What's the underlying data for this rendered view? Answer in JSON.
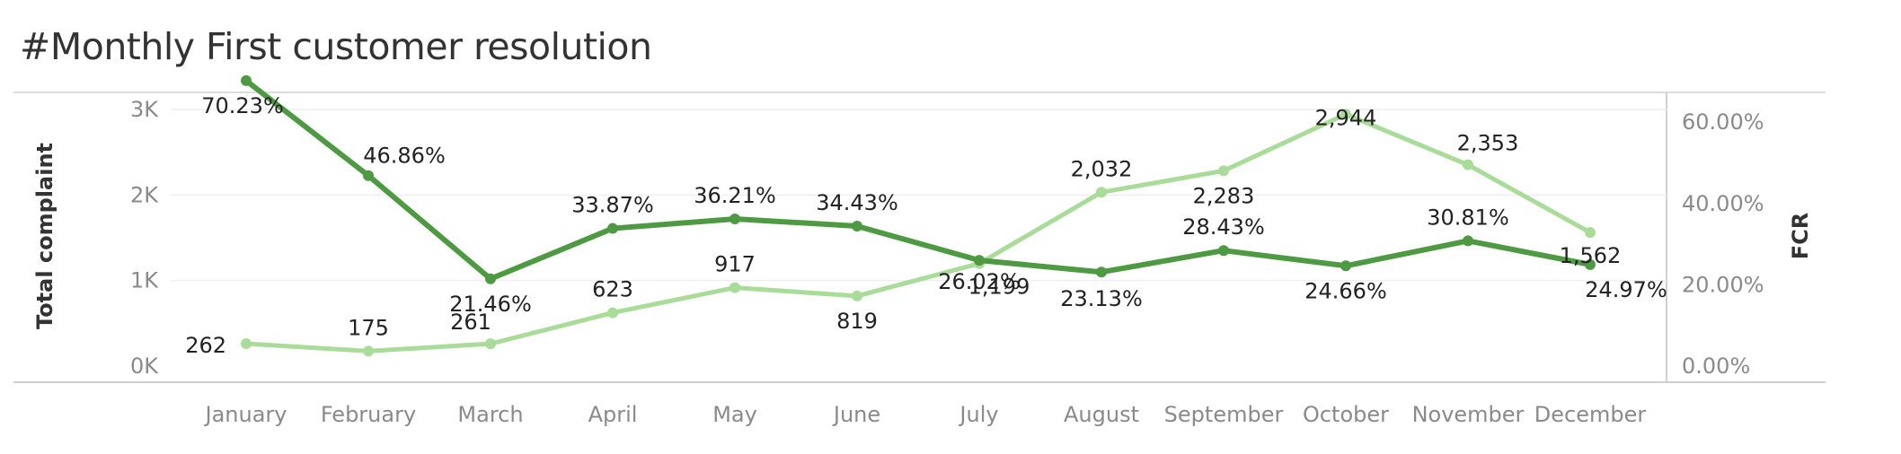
{
  "chart_data": {
    "type": "line",
    "title": "#Monthly First customer resolution",
    "categories": [
      "January",
      "February",
      "March",
      "April",
      "May",
      "June",
      "July",
      "August",
      "September",
      "October",
      "November",
      "December"
    ],
    "y_left": {
      "label": "Total complaint",
      "ticks": [
        "0K",
        "1K",
        "2K",
        "3K"
      ],
      "tick_values": [
        0,
        1000,
        2000,
        3000
      ],
      "range": [
        0,
        3000
      ]
    },
    "y_right": {
      "label": "FCR",
      "ticks": [
        "0.00%",
        "20.00%",
        "40.00%",
        "60.00%"
      ],
      "tick_values": [
        0,
        20,
        40,
        60
      ],
      "range": [
        0,
        66
      ]
    },
    "series": [
      {
        "axis": "left",
        "color": "#a8dc98",
        "values": [
          262,
          175,
          261,
          623,
          917,
          819,
          1199,
          2032,
          2283,
          2944,
          2353,
          1562
        ],
        "labels": [
          "262",
          "175",
          "261",
          "623",
          "917",
          "819",
          "1,199",
          "2,032",
          "2,283",
          "2,944",
          "2,353",
          "1,562"
        ]
      },
      {
        "axis": "right",
        "color": "#4e9a43",
        "values": [
          70.23,
          46.86,
          21.46,
          33.87,
          36.21,
          34.43,
          26.02,
          23.13,
          28.43,
          24.66,
          30.81,
          24.97
        ],
        "labels": [
          "70.23%",
          "46.86%",
          "21.46%",
          "33.87%",
          "36.21%",
          "34.43%",
          "26.02%",
          "23.13%",
          "28.43%",
          "24.66%",
          "30.81%",
          "24.97%"
        ]
      }
    ],
    "grid": true,
    "legend": "none"
  }
}
